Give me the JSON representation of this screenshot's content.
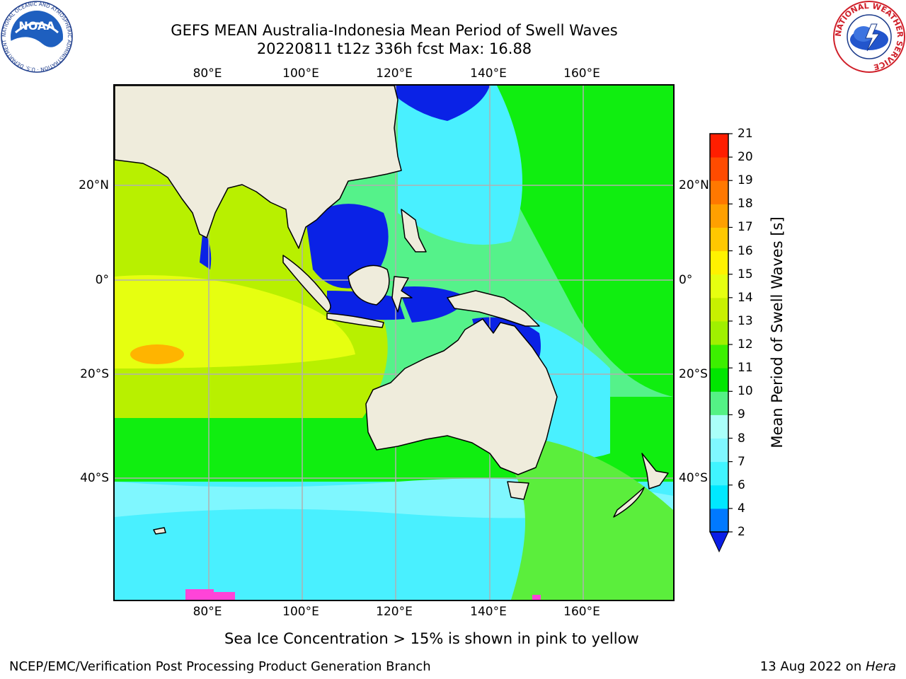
{
  "header": {
    "title_line1": "GEFS MEAN Australia-Indonesia Mean Period of Swell Waves",
    "title_line2": "20220811 t12z 336h fcst   Max: 16.88"
  },
  "map": {
    "longitude_ticks": [
      "80°E",
      "100°E",
      "120°E",
      "140°E",
      "160°E"
    ],
    "latitude_ticks": [
      "20°N",
      "0°",
      "20°S",
      "40°S"
    ],
    "colors": {
      "land": "#efecdc",
      "coast": "#000000",
      "grid": "#b0b0b0",
      "deep_blue": "#0a22e6",
      "cyan": "#49f0ff",
      "aqua": "#7ff7ff",
      "mint": "#55f28a",
      "green": "#10ee10",
      "light_green": "#5bee3c",
      "yellow_green": "#b8f000",
      "yellow": "#e6ff10",
      "orange": "#ffb400",
      "ice_pink": "#ff44d8"
    }
  },
  "colorbar": {
    "title": "Mean Period of Swell Waves [s]",
    "tick_labels": [
      "2",
      "4",
      "6",
      "7",
      "8",
      "9",
      "10",
      "11",
      "12",
      "13",
      "14",
      "15",
      "16",
      "17",
      "18",
      "19",
      "20",
      "21"
    ],
    "segment_colors": [
      "#0079ff",
      "#00e8ff",
      "#40f4ff",
      "#7ff7ff",
      "#aafff9",
      "#54f285",
      "#00e600",
      "#3cf000",
      "#a0f000",
      "#c8f000",
      "#e6ff10",
      "#fff200",
      "#ffc800",
      "#ffa000",
      "#ff7800",
      "#ff4b00",
      "#ff1e00"
    ],
    "extend_color": "#0a1ee6"
  },
  "footer": {
    "note": "Sea Ice Concentration > 15% is shown in pink to yellow",
    "credit": "NCEP/EMC/Verification Post Processing Product Generation Branch",
    "date_text": "13 Aug 2022 on ",
    "machine": "Hera"
  },
  "logos": {
    "noaa": {
      "text": "NOAA",
      "ring_text": "NATIONAL OCEANIC AND ATMOSPHERIC ADMINISTRATION · U.S. DEPARTMENT OF COMMERCE"
    },
    "nws": {
      "ring_text": "NATIONAL WEATHER SERVICE"
    }
  }
}
